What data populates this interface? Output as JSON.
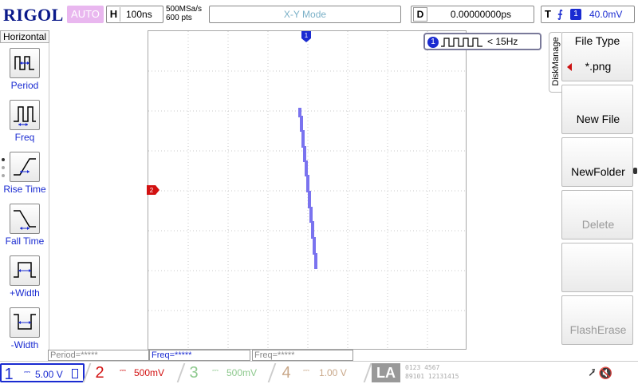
{
  "brand": "RIGOL",
  "top": {
    "run_status": "AUTO",
    "timebase_tag": "H",
    "timebase_value": "100ns",
    "sample_rate": "500MSa/s",
    "memory_depth": "600 pts",
    "mode": "X-Y Mode",
    "delay_tag": "D",
    "delay_value": "0.00000000ps",
    "trigger_tag": "T",
    "trigger_edge": "rising-edge-icon",
    "trigger_source": "1",
    "trigger_level": "40.0mV"
  },
  "left_menu": {
    "title": "Horizontal",
    "items": [
      {
        "label": "Period",
        "icon": "period-icon"
      },
      {
        "label": "Freq",
        "icon": "freq-icon"
      },
      {
        "label": "Rise Time",
        "icon": "rise-time-icon"
      },
      {
        "label": "Fall Time",
        "icon": "fall-time-icon"
      },
      {
        "label": "+Width",
        "icon": "positive-width-icon"
      },
      {
        "label": "-Width",
        "icon": "negative-width-icon"
      }
    ]
  },
  "markers": {
    "ch1": "1",
    "ch2": "2"
  },
  "freq_counter": {
    "source": "1",
    "value": "< 15Hz"
  },
  "measurements": {
    "period": "Period=*****",
    "freq1": "Freq=*****",
    "freq2": "Freq=*****"
  },
  "right_menu": {
    "tab_label": "DiskManage",
    "items": [
      {
        "title": "File Type",
        "value": "*.png",
        "disabled": false
      },
      {
        "label": "New File",
        "disabled": false
      },
      {
        "label": "NewFolder",
        "disabled": false
      },
      {
        "label": "Delete",
        "disabled": true
      },
      {
        "label": "",
        "disabled": false
      },
      {
        "label": "FlashErase",
        "disabled": true
      }
    ]
  },
  "channels": [
    {
      "num": "1",
      "coupling": "DC",
      "scale": "5.00 V",
      "color": "#1a2bd1"
    },
    {
      "num": "2",
      "coupling": "DC",
      "scale": "500mV",
      "color": "#d21111"
    },
    {
      "num": "3",
      "coupling": "DC",
      "scale": "500mV",
      "color": "#8ec98e"
    },
    {
      "num": "4",
      "coupling": "DC",
      "scale": "1.00 V",
      "color": "#c9a88a"
    }
  ],
  "la": {
    "label": "LA",
    "digits_top": "0123 4567",
    "digits_bottom": "89101 12131415"
  },
  "status": {
    "usb": "usb-icon",
    "sound": "speaker-muted-icon"
  }
}
